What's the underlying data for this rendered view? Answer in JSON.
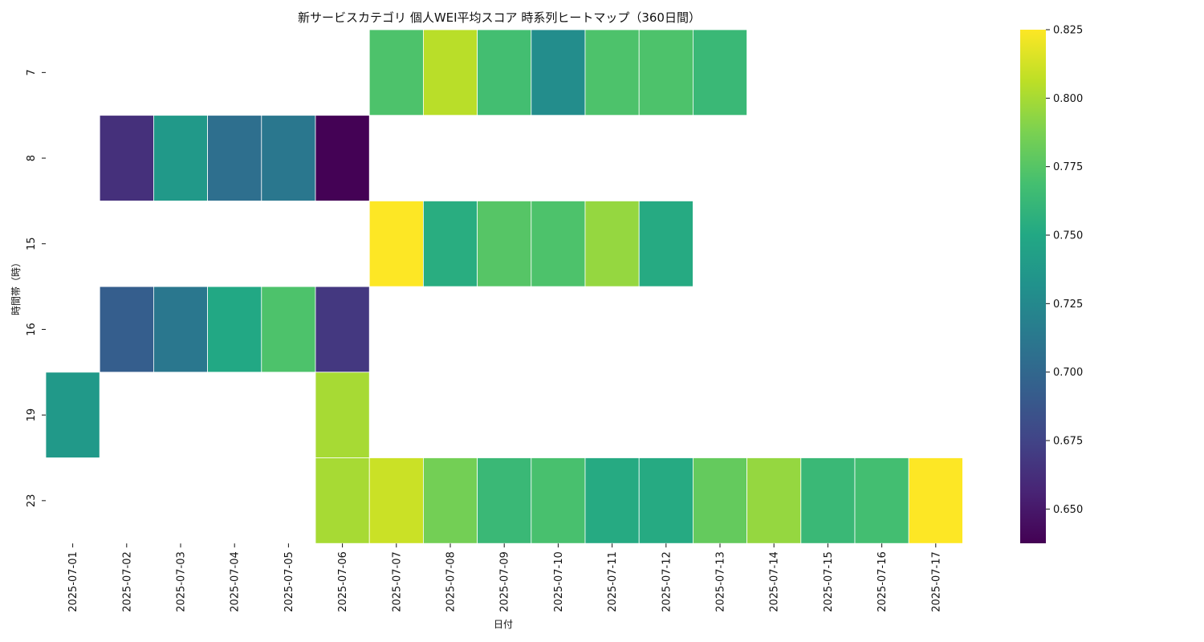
{
  "chart_data": {
    "type": "heatmap",
    "title": "新サービスカテゴリ 個人WEI平均スコア 時系列ヒートマップ（360日間）",
    "xlabel": "日付",
    "ylabel": "時間帯（時）",
    "x_categories": [
      "2025-07-01",
      "2025-07-02",
      "2025-07-03",
      "2025-07-04",
      "2025-07-05",
      "2025-07-06",
      "2025-07-07",
      "2025-07-08",
      "2025-07-09",
      "2025-07-10",
      "2025-07-11",
      "2025-07-12",
      "2025-07-13",
      "2025-07-14",
      "2025-07-15",
      "2025-07-16",
      "2025-07-17"
    ],
    "y_categories": [
      "7",
      "8",
      "15",
      "16",
      "19",
      "23"
    ],
    "values": [
      [
        null,
        null,
        null,
        null,
        null,
        null,
        0.772,
        0.805,
        0.768,
        0.728,
        0.772,
        0.772,
        0.763,
        null,
        null,
        null,
        null
      ],
      [
        null,
        0.663,
        0.738,
        0.706,
        0.712,
        0.638,
        null,
        null,
        null,
        null,
        null,
        null,
        null,
        null,
        null,
        null,
        null
      ],
      [
        null,
        null,
        null,
        null,
        null,
        null,
        0.825,
        0.754,
        0.775,
        0.772,
        0.795,
        0.752,
        null,
        null,
        null,
        null,
        null
      ],
      [
        null,
        0.693,
        0.712,
        0.75,
        0.772,
        0.668,
        null,
        null,
        null,
        null,
        null,
        null,
        null,
        null,
        null,
        null,
        null
      ],
      [
        0.738,
        null,
        null,
        null,
        null,
        0.8,
        null,
        null,
        null,
        null,
        null,
        null,
        null,
        null,
        null,
        null,
        null
      ],
      [
        null,
        null,
        null,
        null,
        null,
        0.8,
        0.81,
        0.785,
        0.763,
        0.77,
        0.752,
        0.752,
        0.78,
        0.795,
        0.763,
        0.768,
        0.825
      ]
    ],
    "vmin": 0.6375,
    "vmax": 0.825,
    "colormap": "viridis",
    "colorbar_ticks": [
      "0.650",
      "0.675",
      "0.700",
      "0.725",
      "0.750",
      "0.775",
      "0.800",
      "0.825"
    ],
    "grid": false,
    "legend": "colorbar-right"
  }
}
